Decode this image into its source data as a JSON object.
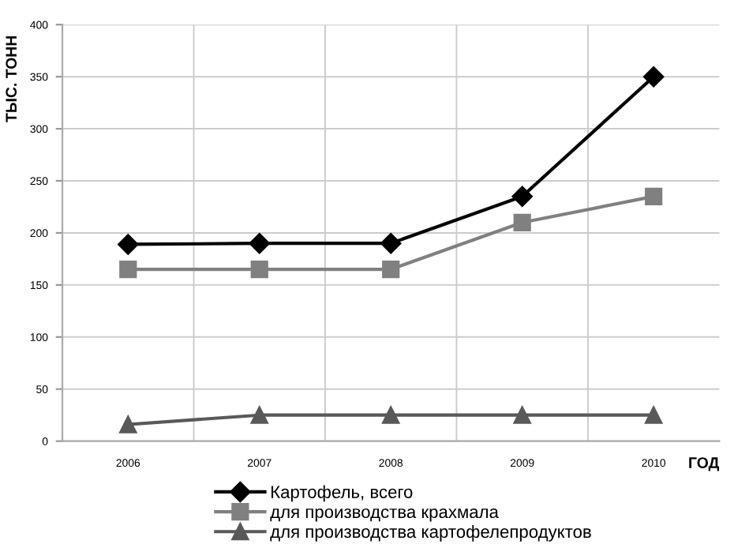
{
  "chart_data": {
    "type": "line",
    "ylabel": "ТЫС. ТОНН",
    "xlabel": "ГОД",
    "categories": [
      "2006",
      "2007",
      "2008",
      "2009",
      "2010"
    ],
    "series": [
      {
        "name": "Картофель, всего",
        "color": "#000000",
        "marker": "diamond",
        "values": [
          189,
          190,
          190,
          235,
          350
        ]
      },
      {
        "name": "для производства крахмала",
        "color": "#808080",
        "marker": "square",
        "values": [
          165,
          165,
          165,
          210,
          235
        ]
      },
      {
        "name": "для производства картофелепродуктов",
        "color": "#595959",
        "marker": "triangle",
        "values": [
          16,
          25,
          25,
          25,
          25
        ]
      }
    ],
    "ylim": [
      0,
      400
    ],
    "yticks": [
      0,
      50,
      100,
      150,
      200,
      250,
      300,
      350,
      400
    ],
    "grid": true,
    "legend": "bottom",
    "line_style": "solid"
  }
}
